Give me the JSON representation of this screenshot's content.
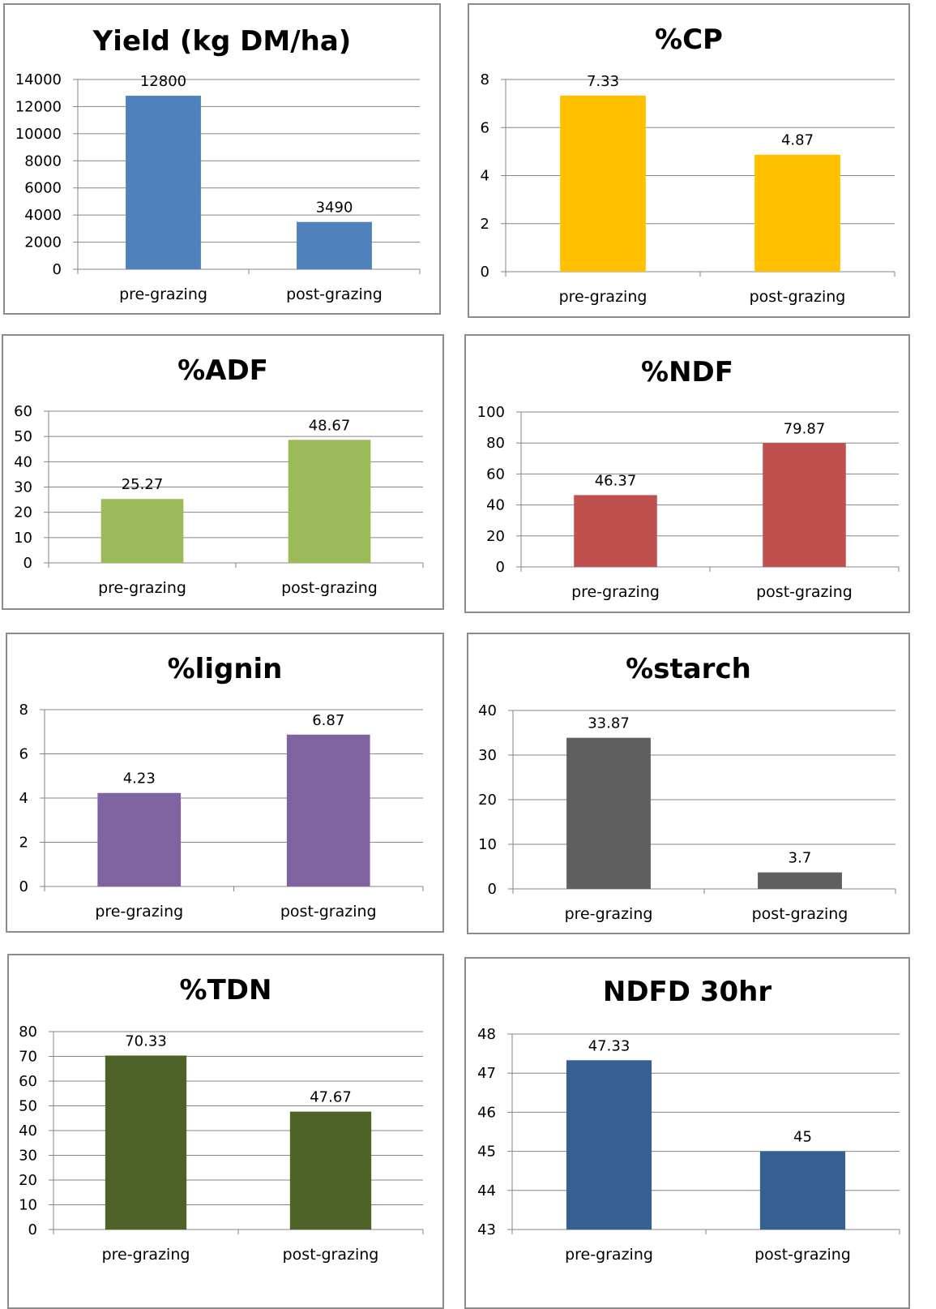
{
  "chart_data": [
    {
      "type": "bar",
      "title": "Yield (kg DM/ha)",
      "categories": [
        "pre-grazing",
        "post-grazing"
      ],
      "values": [
        12800,
        3490
      ],
      "value_labels": [
        "12800",
        "3490"
      ],
      "ylim": [
        0,
        14000
      ],
      "yticks": [
        "0",
        "2000",
        "4000",
        "6000",
        "8000",
        "10000",
        "12000",
        "14000"
      ],
      "color": "#4f81bd",
      "grid": true,
      "legend": "none"
    },
    {
      "type": "bar",
      "title": "%CP",
      "categories": [
        "pre-grazing",
        "post-grazing"
      ],
      "values": [
        7.33,
        4.87
      ],
      "value_labels": [
        "7.33",
        "4.87"
      ],
      "ylim": [
        0,
        8
      ],
      "yticks": [
        "0",
        "2",
        "4",
        "6",
        "8"
      ],
      "color": "#ffc000",
      "grid": true,
      "legend": "none"
    },
    {
      "type": "bar",
      "title": "%ADF",
      "categories": [
        "pre-grazing",
        "post-grazing"
      ],
      "values": [
        25.27,
        48.67
      ],
      "value_labels": [
        "25.27",
        "48.67"
      ],
      "ylim": [
        0,
        60
      ],
      "yticks": [
        "0",
        "10",
        "20",
        "30",
        "40",
        "50",
        "60"
      ],
      "color": "#9bbb59",
      "grid": true,
      "legend": "none"
    },
    {
      "type": "bar",
      "title": "%NDF",
      "categories": [
        "pre-grazing",
        "post-grazing"
      ],
      "values": [
        46.37,
        79.87
      ],
      "value_labels": [
        "46.37",
        "79.87"
      ],
      "ylim": [
        0,
        100
      ],
      "yticks": [
        "0",
        "20",
        "40",
        "60",
        "80",
        "100"
      ],
      "color": "#c0504d",
      "grid": true,
      "legend": "none"
    },
    {
      "type": "bar",
      "title": "%lignin",
      "categories": [
        "pre-grazing",
        "post-grazing"
      ],
      "values": [
        4.23,
        6.87
      ],
      "value_labels": [
        "4.23",
        "6.87"
      ],
      "ylim": [
        0,
        8
      ],
      "yticks": [
        "0",
        "2",
        "4",
        "6",
        "8"
      ],
      "color": "#8064a2",
      "grid": true,
      "legend": "none"
    },
    {
      "type": "bar",
      "title": "%starch",
      "categories": [
        "pre-grazing",
        "post-grazing"
      ],
      "values": [
        33.87,
        3.7
      ],
      "value_labels": [
        "33.87",
        "3.7"
      ],
      "ylim": [
        0,
        40
      ],
      "yticks": [
        "0",
        "10",
        "20",
        "30",
        "40"
      ],
      "color": "#5f5f5f",
      "grid": true,
      "legend": "none"
    },
    {
      "type": "bar",
      "title": "%TDN",
      "categories": [
        "pre-grazing",
        "post-grazing"
      ],
      "values": [
        70.33,
        47.67
      ],
      "value_labels": [
        "70.33",
        "47.67"
      ],
      "ylim": [
        0,
        80
      ],
      "yticks": [
        "0",
        "10",
        "20",
        "30",
        "40",
        "50",
        "60",
        "70",
        "80"
      ],
      "color": "#4f6228",
      "grid": true,
      "legend": "none"
    },
    {
      "type": "bar",
      "title": "NDFD 30hr",
      "categories": [
        "pre-grazing",
        "post-grazing"
      ],
      "values": [
        47.33,
        45
      ],
      "value_labels": [
        "47.33",
        "45"
      ],
      "ylim": [
        43,
        48
      ],
      "yticks": [
        "43",
        "44",
        "45",
        "46",
        "47",
        "48"
      ],
      "color": "#366092",
      "grid": true,
      "legend": "none"
    }
  ]
}
